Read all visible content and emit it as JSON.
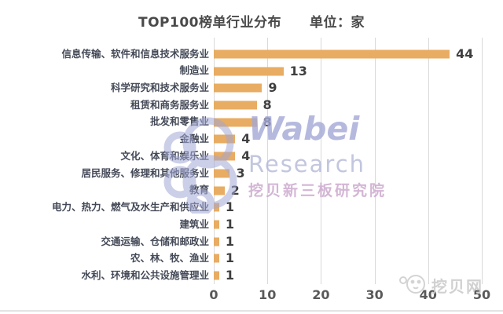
{
  "title": {
    "main": "TOP100榜单行业分布",
    "unit": "单位：家"
  },
  "chart_data": {
    "type": "bar",
    "orientation": "horizontal",
    "title": "TOP100榜单行业分布",
    "unit_label": "单位：家",
    "categories": [
      "信息传输、软件和信息技术服务业",
      "制造业",
      "科学研究和技术服务业",
      "租赁和商务服务业",
      "批发和零售业",
      "金融业",
      "文化、体育和娱乐业",
      "居民服务、修理和其他服务业",
      "教育",
      "电力、热力、燃气及水生产和供应业",
      "建筑业",
      "交通运输、仓储和邮政业",
      "农、林、牧、渔业",
      "水利、环境和公共设施管理业"
    ],
    "values": [
      44,
      13,
      9,
      8,
      8,
      4,
      4,
      3,
      2,
      1,
      1,
      1,
      1,
      1
    ],
    "xlim": [
      0,
      50
    ],
    "xticks": [
      0,
      10,
      20,
      30,
      40,
      50
    ],
    "grid": true,
    "value_labels": true,
    "bar_color": "#e8ac62"
  },
  "watermark": {
    "brand": "Wabei",
    "brand_sub": "Research",
    "brand_cn": "挖贝新三板研究院",
    "corner": "挖贝网"
  },
  "colors": {
    "bar": "#e8ac62",
    "gridline": "#d9d9d9",
    "category_label": "#454a58",
    "value_label": "#3f3f3f",
    "tick_label": "#595959",
    "title_text": "#4a4a4a",
    "watermark_blue": "#a3a8d6",
    "watermark_pink": "#c9a5cb",
    "corner_gray": "#c9c9c9"
  }
}
